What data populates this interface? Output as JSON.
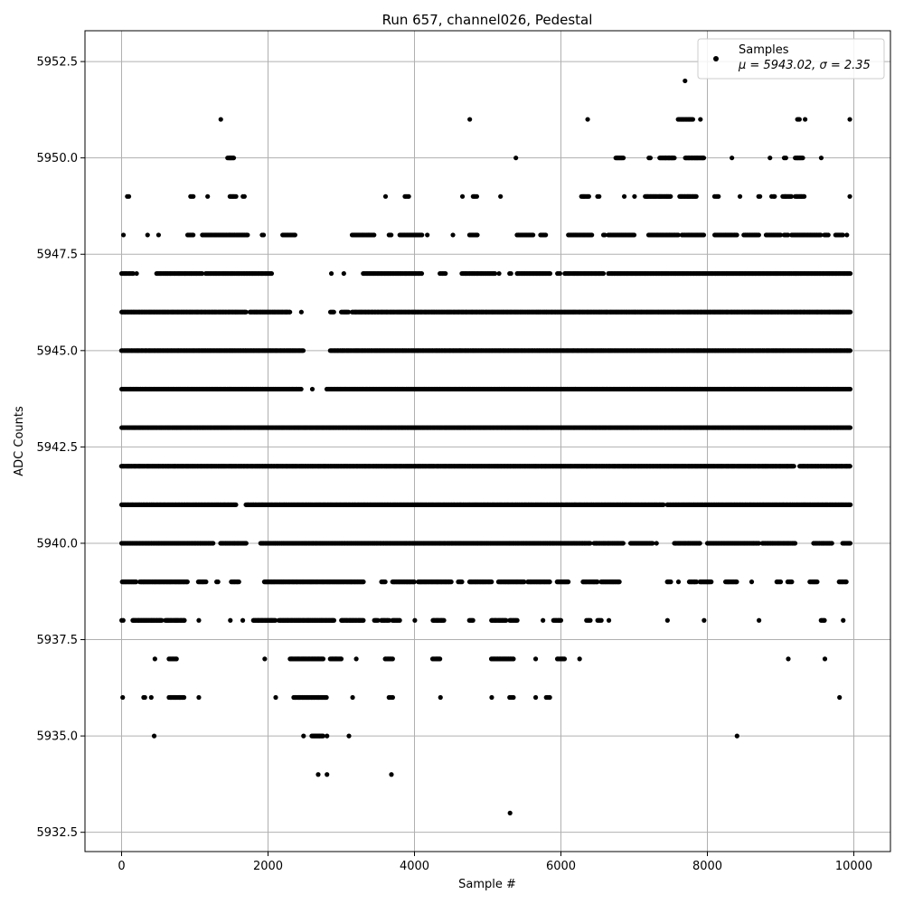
{
  "chart_data": {
    "type": "scatter",
    "title": "Run 657, channel026, Pedestal",
    "xlabel": "Sample #",
    "ylabel": "ADC Counts",
    "xlim": [
      -500,
      10500
    ],
    "ylim": [
      5932,
      5953.3
    ],
    "xticks": [
      0,
      2000,
      4000,
      6000,
      8000,
      10000
    ],
    "yticks": [
      5932.5,
      5935.0,
      5937.5,
      5940.0,
      5942.5,
      5945.0,
      5947.5,
      5950.0,
      5952.5
    ],
    "grid": true,
    "legend_position": "top-right",
    "legend": {
      "series_name": "Samples",
      "stats_label": "μ = 5943.02, σ = 2.35"
    },
    "series": [
      {
        "name": "Samples",
        "color": "#000000",
        "sample_count": 10000,
        "mean": 5943.02,
        "sigma": 2.35,
        "levels": [
          {
            "y": 5952,
            "coverage": [
              [
                7690,
                7700
              ]
            ]
          },
          {
            "y": 5951,
            "coverage": [
              [
                1350,
                1360
              ],
              [
                4750,
                4760
              ],
              [
                6360,
                6370
              ],
              [
                7600,
                7800
              ],
              [
                7900,
                7910
              ],
              [
                9230,
                9260
              ],
              [
                9330,
                9340
              ],
              [
                9940,
                9950
              ]
            ]
          },
          {
            "y": 5950,
            "coverage": [
              [
                1450,
                1530
              ],
              [
                5380,
                5390
              ],
              [
                6750,
                6850
              ],
              [
                7200,
                7220
              ],
              [
                7350,
                7550
              ],
              [
                7700,
                7950
              ],
              [
                8330,
                8340
              ],
              [
                8850,
                8860
              ],
              [
                9050,
                9070
              ],
              [
                9200,
                9300
              ],
              [
                9550,
                9560
              ]
            ]
          },
          {
            "y": 5949,
            "coverage": [
              [
                80,
                100
              ],
              [
                940,
                980
              ],
              [
                1170,
                1180
              ],
              [
                1480,
                1560
              ],
              [
                1660,
                1680
              ],
              [
                3600,
                3610
              ],
              [
                3870,
                3920
              ],
              [
                4650,
                4660
              ],
              [
                4800,
                4850
              ],
              [
                5170,
                5180
              ],
              [
                6280,
                6380
              ],
              [
                6500,
                6520
              ],
              [
                6860,
                6870
              ],
              [
                7000,
                7010
              ],
              [
                7150,
                7500
              ],
              [
                7620,
                7850
              ],
              [
                8100,
                8150
              ],
              [
                8440,
                8450
              ],
              [
                8700,
                8720
              ],
              [
                8880,
                8920
              ],
              [
                9030,
                9150
              ],
              [
                9200,
                9320
              ],
              [
                9940,
                9950
              ]
            ]
          },
          {
            "y": 5948,
            "coverage": [
              [
                20,
                30
              ],
              [
                350,
                360
              ],
              [
                500,
                510
              ],
              [
                900,
                980
              ],
              [
                1100,
                1720
              ],
              [
                1920,
                1940
              ],
              [
                2200,
                2370
              ],
              [
                3150,
                3450
              ],
              [
                3650,
                3680
              ],
              [
                3800,
                4100
              ],
              [
                4170,
                4180
              ],
              [
                4520,
                4530
              ],
              [
                4750,
                4860
              ],
              [
                5400,
                5620
              ],
              [
                5720,
                5790
              ],
              [
                6100,
                6420
              ],
              [
                6580,
                6600
              ],
              [
                6650,
                7000
              ],
              [
                7200,
                7600
              ],
              [
                7650,
                7950
              ],
              [
                8100,
                8400
              ],
              [
                8500,
                8700
              ],
              [
                8800,
                9000
              ],
              [
                9050,
                9100
              ],
              [
                9150,
                9550
              ],
              [
                9600,
                9650
              ],
              [
                9750,
                9850
              ],
              [
                9900,
                9910
              ]
            ]
          },
          {
            "y": 5947,
            "coverage": [
              [
                0,
                160
              ],
              [
                200,
                210
              ],
              [
                480,
                1100
              ],
              [
                1150,
                2050
              ],
              [
                2860,
                2870
              ],
              [
                3030,
                3040
              ],
              [
                3300,
                4100
              ],
              [
                4350,
                4420
              ],
              [
                4650,
                5100
              ],
              [
                5150,
                5160
              ],
              [
                5300,
                5320
              ],
              [
                5400,
                5850
              ],
              [
                5950,
                5990
              ],
              [
                6050,
                6580
              ],
              [
                6650,
                9950
              ]
            ]
          },
          {
            "y": 5946,
            "coverage": [
              [
                0,
                1700
              ],
              [
                1750,
                2300
              ],
              [
                2450,
                2460
              ],
              [
                2850,
                2900
              ],
              [
                3000,
                3100
              ],
              [
                3150,
                9950
              ]
            ]
          },
          {
            "y": 5945,
            "coverage": [
              [
                0,
                2480
              ],
              [
                2850,
                9950
              ]
            ]
          },
          {
            "y": 5944,
            "coverage": [
              [
                0,
                2450
              ],
              [
                2600,
                2610
              ],
              [
                2800,
                9950
              ]
            ]
          },
          {
            "y": 5943,
            "coverage": [
              [
                0,
                9950
              ]
            ]
          },
          {
            "y": 5942,
            "coverage": [
              [
                0,
                9180
              ],
              [
                9260,
                9950
              ]
            ]
          },
          {
            "y": 5941,
            "coverage": [
              [
                0,
                1560
              ],
              [
                1700,
                7400
              ],
              [
                7450,
                9950
              ]
            ]
          },
          {
            "y": 5940,
            "coverage": [
              [
                0,
                1250
              ],
              [
                1350,
                1700
              ],
              [
                1900,
                6400
              ],
              [
                6450,
                6850
              ],
              [
                6950,
                7250
              ],
              [
                7300,
                7310
              ],
              [
                7550,
                7900
              ],
              [
                8000,
                8700
              ],
              [
                8750,
                9200
              ],
              [
                9450,
                9700
              ],
              [
                9850,
                9950
              ]
            ]
          },
          {
            "y": 5939,
            "coverage": [
              [
                10,
                200
              ],
              [
                250,
                900
              ],
              [
                1050,
                1150
              ],
              [
                1300,
                1320
              ],
              [
                1500,
                1600
              ],
              [
                1950,
                3300
              ],
              [
                3550,
                3600
              ],
              [
                3700,
                4000
              ],
              [
                4050,
                4500
              ],
              [
                4600,
                4650
              ],
              [
                4750,
                5050
              ],
              [
                5150,
                5500
              ],
              [
                5550,
                5850
              ],
              [
                5950,
                6100
              ],
              [
                6300,
                6500
              ],
              [
                6550,
                6800
              ],
              [
                7450,
                7500
              ],
              [
                7600,
                7610
              ],
              [
                7750,
                7850
              ],
              [
                7900,
                8050
              ],
              [
                8250,
                8400
              ],
              [
                8600,
                8610
              ],
              [
                8950,
                9000
              ],
              [
                9100,
                9150
              ],
              [
                9400,
                9500
              ],
              [
                9800,
                9900
              ]
            ]
          },
          {
            "y": 5938,
            "coverage": [
              [
                0,
                20
              ],
              [
                150,
                550
              ],
              [
                600,
                860
              ],
              [
                1050,
                1060
              ],
              [
                1480,
                1490
              ],
              [
                1650,
                1660
              ],
              [
                1800,
                2100
              ],
              [
                2150,
                2900
              ],
              [
                3000,
                3300
              ],
              [
                3450,
                3500
              ],
              [
                3550,
                3650
              ],
              [
                3700,
                3800
              ],
              [
                4000,
                4010
              ],
              [
                4250,
                4400
              ],
              [
                4750,
                4800
              ],
              [
                5050,
                5250
              ],
              [
                5300,
                5400
              ],
              [
                5750,
                5760
              ],
              [
                5900,
                6000
              ],
              [
                6350,
                6400
              ],
              [
                6500,
                6550
              ],
              [
                6650,
                6660
              ],
              [
                7450,
                7460
              ],
              [
                7950,
                7960
              ],
              [
                8700,
                8710
              ],
              [
                9550,
                9600
              ],
              [
                9850,
                9860
              ]
            ]
          },
          {
            "y": 5937,
            "coverage": [
              [
                450,
                460
              ],
              [
                650,
                750
              ],
              [
                1950,
                1960
              ],
              [
                2300,
                2750
              ],
              [
                2850,
                3000
              ],
              [
                3200,
                3210
              ],
              [
                3600,
                3700
              ],
              [
                4250,
                4350
              ],
              [
                5050,
                5350
              ],
              [
                5650,
                5660
              ],
              [
                5950,
                6050
              ],
              [
                6250,
                6260
              ],
              [
                9100,
                9110
              ],
              [
                9600,
                9610
              ]
            ]
          },
          {
            "y": 5936,
            "coverage": [
              [
                10,
                20
              ],
              [
                300,
                320
              ],
              [
                400,
                410
              ],
              [
                650,
                850
              ],
              [
                1050,
                1060
              ],
              [
                2100,
                2110
              ],
              [
                2350,
                2800
              ],
              [
                3150,
                3160
              ],
              [
                3650,
                3700
              ],
              [
                4350,
                4360
              ],
              [
                5050,
                5060
              ],
              [
                5300,
                5350
              ],
              [
                5650,
                5660
              ],
              [
                5800,
                5850
              ],
              [
                9800,
                9810
              ]
            ]
          },
          {
            "y": 5935,
            "coverage": [
              [
                440,
                450
              ],
              [
                2480,
                2490
              ],
              [
                2600,
                2750
              ],
              [
                2800,
                2810
              ],
              [
                3100,
                3110
              ],
              [
                8400,
                8410
              ]
            ]
          },
          {
            "y": 5934,
            "coverage": [
              [
                2680,
                2690
              ],
              [
                2800,
                2810
              ],
              [
                3680,
                3690
              ]
            ]
          },
          {
            "y": 5933,
            "coverage": [
              [
                5300,
                5310
              ]
            ]
          }
        ]
      }
    ]
  }
}
